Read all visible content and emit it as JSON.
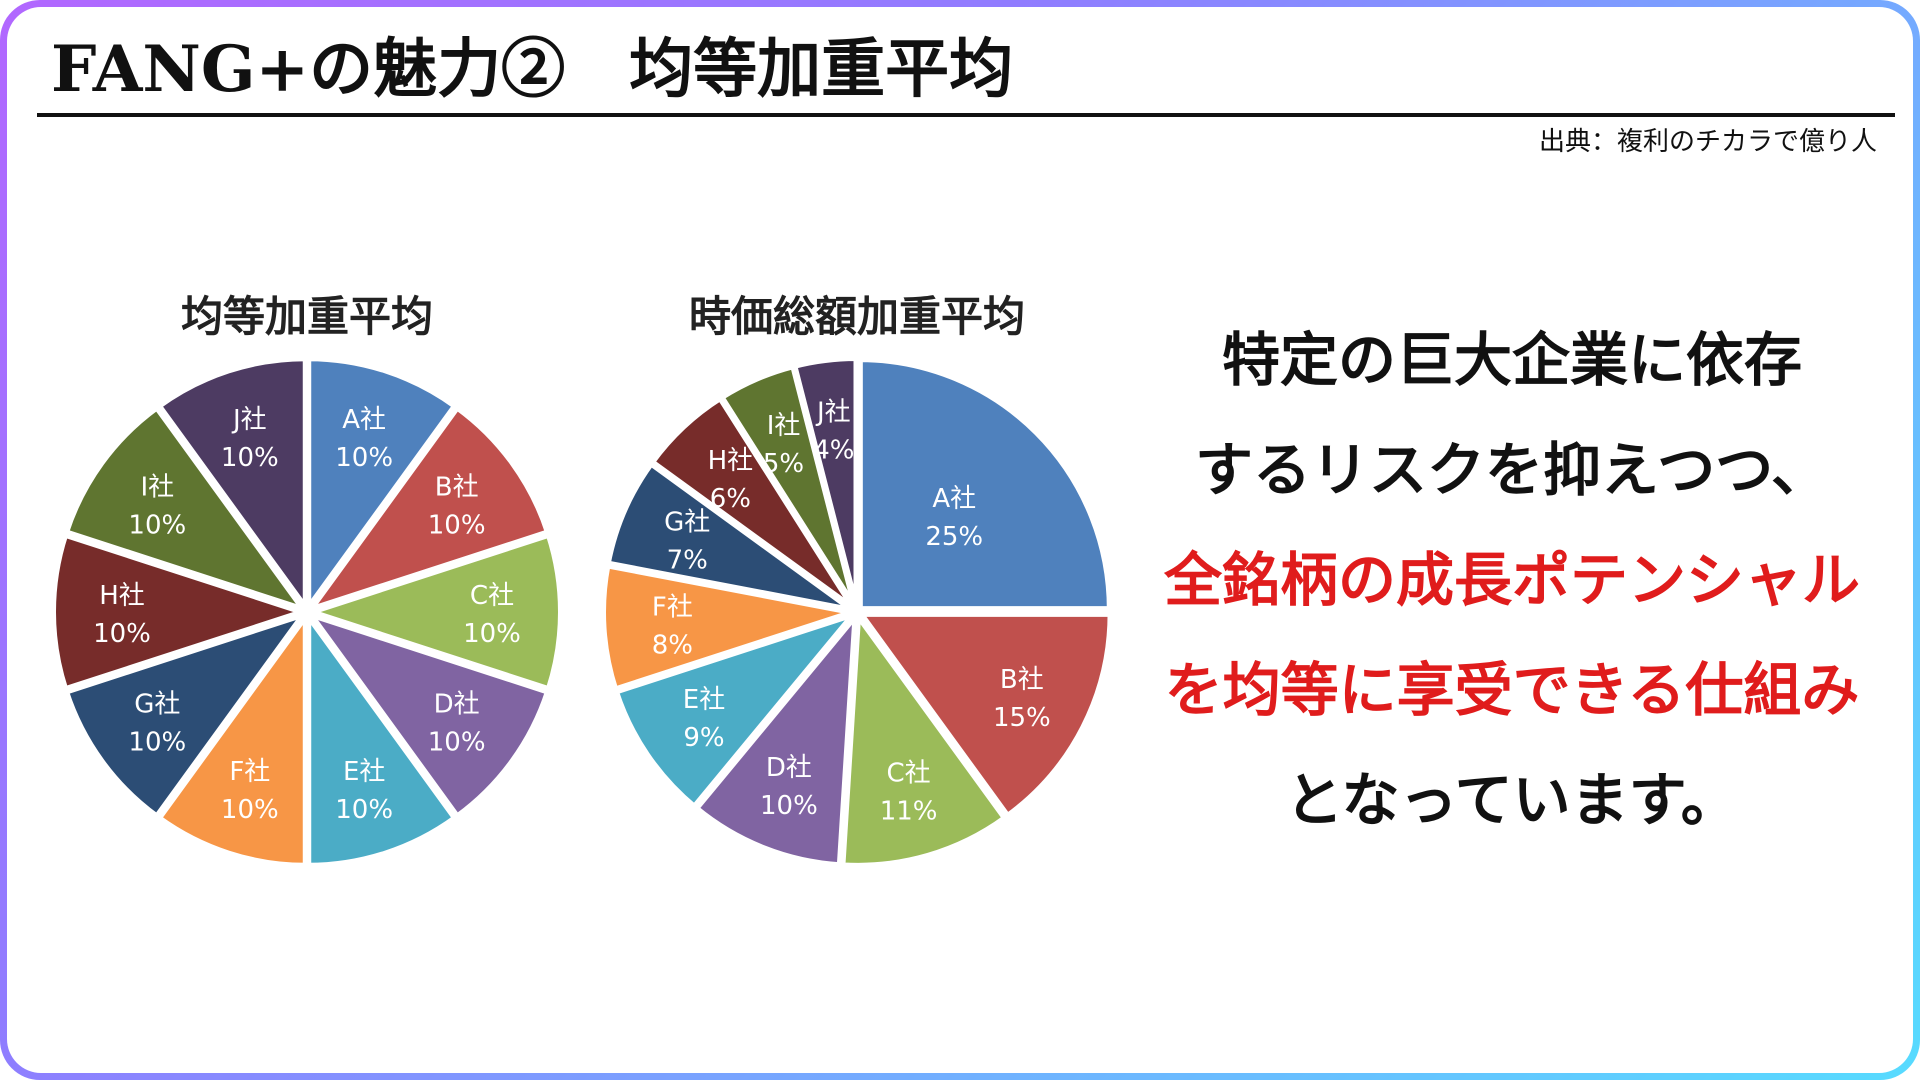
{
  "slide": {
    "title": "FANG+の魅力②　均等加重平均",
    "source": "出典：複利のチカラで億り人"
  },
  "colors": {
    "A": "#4f81bd",
    "B": "#c0504d",
    "C": "#9bbb59",
    "D": "#8064a2",
    "E": "#4bacc6",
    "F": "#f79646",
    "G": "#2c4d75",
    "H": "#772c2a",
    "I": "#5f7530",
    "J": "#4d3b62",
    "accent_red": "#e01c1c"
  },
  "chart_data": [
    {
      "type": "pie",
      "title": "均等加重平均",
      "categories": [
        "A社",
        "B社",
        "C社",
        "D社",
        "E社",
        "F社",
        "G社",
        "H社",
        "I社",
        "J社"
      ],
      "values": [
        10,
        10,
        10,
        10,
        10,
        10,
        10,
        10,
        10,
        10
      ],
      "labels": [
        "10%",
        "10%",
        "10%",
        "10%",
        "10%",
        "10%",
        "10%",
        "10%",
        "10%",
        "10%"
      ],
      "color_keys": [
        "A",
        "B",
        "C",
        "D",
        "E",
        "F",
        "G",
        "H",
        "I",
        "J"
      ]
    },
    {
      "type": "pie",
      "title": "時価総額加重平均",
      "categories": [
        "A社",
        "B社",
        "C社",
        "D社",
        "E社",
        "F社",
        "G社",
        "H社",
        "I社",
        "J社"
      ],
      "values": [
        25,
        15,
        11,
        10,
        9,
        8,
        7,
        6,
        5,
        4
      ],
      "labels": [
        "25%",
        "15%",
        "11%",
        "10%",
        "9%",
        "8%",
        "7%",
        "6%",
        "5%",
        "4%"
      ],
      "color_keys": [
        "A",
        "B",
        "C",
        "D",
        "E",
        "F",
        "G",
        "H",
        "I",
        "J"
      ]
    }
  ],
  "message": {
    "line1": "特定の巨大企業に依存",
    "line2": "するリスクを抑えつつ、",
    "line3": "全銘柄の成長ポテンシャル",
    "line4": "を均等に享受できる仕組み",
    "line5": "となっています。"
  }
}
